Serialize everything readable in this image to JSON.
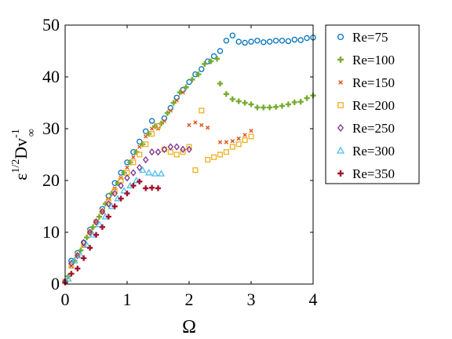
{
  "chart_data": {
    "type": "scatter",
    "title": "",
    "xlabel": "Ω",
    "ylabel": {
      "base": "ε",
      "base_superscript": "1/2",
      "main": "Dv",
      "main_superscript": "-1",
      "main_subscript": "∞"
    },
    "xlim": [
      0,
      4
    ],
    "ylim": [
      0,
      50
    ],
    "xticks": [
      "0",
      "1",
      "2",
      "3",
      "4"
    ],
    "yticks": [
      "0",
      "10",
      "20",
      "30",
      "40",
      "50"
    ],
    "grid": false,
    "legend_position": "outside-right-top",
    "series": [
      {
        "name": "Re=75",
        "marker": "circle",
        "color": "#0072BD",
        "x": [
          0.0,
          0.1,
          0.2,
          0.3,
          0.4,
          0.5,
          0.6,
          0.7,
          0.8,
          0.9,
          1.0,
          1.1,
          1.2,
          1.3,
          1.4,
          1.5,
          1.6,
          1.7,
          1.8,
          1.9,
          2.0,
          2.1,
          2.2,
          2.3,
          2.4,
          2.5,
          2.6,
          2.7,
          2.8,
          2.9,
          3.0,
          3.1,
          3.2,
          3.3,
          3.4,
          3.5,
          3.6,
          3.7,
          3.8,
          3.9,
          4.0
        ],
        "y": [
          0.5,
          4.5,
          6.0,
          8.0,
          10.5,
          12.0,
          14.5,
          17.0,
          19.5,
          21.5,
          23.5,
          25.5,
          27.5,
          29.5,
          31.5,
          30.5,
          32.0,
          34.0,
          36.0,
          37.5,
          39.0,
          40.5,
          41.5,
          43.0,
          44.0,
          45.0,
          47.0,
          48.0,
          46.8,
          46.6,
          46.8,
          47.0,
          46.7,
          46.8,
          47.0,
          47.0,
          46.9,
          47.2,
          47.1,
          47.5,
          47.6
        ]
      },
      {
        "name": "Re=100",
        "marker": "plus",
        "color": "#77AC30",
        "x": [
          0.05,
          0.15,
          0.25,
          0.35,
          0.45,
          0.55,
          0.65,
          0.75,
          0.85,
          0.95,
          1.05,
          1.15,
          1.25,
          1.35,
          1.45,
          1.55,
          1.65,
          1.75,
          1.85,
          1.95,
          2.05,
          2.15,
          2.25,
          2.35,
          2.45,
          2.5,
          2.6,
          2.7,
          2.8,
          2.9,
          3.0,
          3.1,
          3.2,
          3.3,
          3.4,
          3.5,
          3.6,
          3.7,
          3.8,
          3.9,
          4.0
        ],
        "y": [
          1.5,
          4.5,
          6.5,
          9.0,
          11.0,
          13.0,
          15.5,
          17.5,
          19.5,
          21.5,
          23.5,
          25.5,
          27.0,
          29.0,
          30.5,
          31.0,
          33.0,
          35.0,
          37.0,
          38.0,
          39.5,
          40.5,
          42.5,
          43.0,
          43.5,
          38.7,
          36.7,
          35.7,
          35.3,
          35.0,
          34.7,
          34.1,
          34.1,
          34.1,
          34.2,
          34.4,
          34.7,
          35.1,
          35.2,
          35.9,
          36.4
        ]
      },
      {
        "name": "Re=150",
        "marker": "x",
        "color": "#D95319",
        "x": [
          0.0,
          0.1,
          0.2,
          0.3,
          0.4,
          0.5,
          0.6,
          0.7,
          0.8,
          0.9,
          1.0,
          1.1,
          1.2,
          1.3,
          1.4,
          1.5,
          1.6,
          1.7,
          1.8,
          1.9,
          2.0,
          2.1,
          2.2,
          2.3,
          2.5,
          2.6,
          2.7,
          2.8,
          2.9,
          3.0
        ],
        "y": [
          0.5,
          3.5,
          5.5,
          7.5,
          10.0,
          12.0,
          14.0,
          16.5,
          18.5,
          20.5,
          22.5,
          24.5,
          26.5,
          28.5,
          30.0,
          30.0,
          31.5,
          33.5,
          35.5,
          37.0,
          30.7,
          31.2,
          30.7,
          30.2,
          27.4,
          27.4,
          27.6,
          28.1,
          28.8,
          29.6
        ]
      },
      {
        "name": "Re=200",
        "marker": "square",
        "color": "#EDB120",
        "x": [
          0.0,
          0.1,
          0.2,
          0.3,
          0.4,
          0.5,
          0.6,
          0.7,
          0.8,
          0.9,
          1.0,
          1.1,
          1.2,
          1.3,
          1.4,
          1.5,
          1.6,
          1.7,
          1.8,
          1.9,
          2.0,
          2.1,
          2.2,
          2.3,
          2.4,
          2.5,
          2.6,
          2.7,
          2.8,
          2.9,
          3.0
        ],
        "y": [
          0.5,
          3.5,
          5.5,
          7.5,
          10.0,
          12.0,
          14.0,
          16.0,
          18.0,
          20.0,
          21.5,
          23.5,
          25.0,
          27.0,
          29.0,
          30.5,
          26.0,
          25.5,
          25.0,
          25.5,
          26.5,
          22.0,
          33.5,
          24.0,
          24.5,
          25.0,
          25.5,
          26.5,
          27.0,
          27.8,
          28.5
        ]
      },
      {
        "name": "Re=250",
        "marker": "diamond",
        "color": "#7E2F8E",
        "x": [
          0.0,
          0.1,
          0.2,
          0.3,
          0.4,
          0.5,
          0.6,
          0.7,
          0.8,
          0.9,
          1.0,
          1.1,
          1.2,
          1.3,
          1.4,
          1.5,
          1.6,
          1.7,
          1.8,
          1.9,
          2.0
        ],
        "y": [
          0.5,
          4.0,
          5.5,
          8.0,
          10.0,
          12.0,
          14.0,
          15.5,
          17.5,
          19.0,
          20.5,
          21.5,
          22.5,
          24.0,
          25.5,
          25.5,
          26.0,
          26.5,
          26.5,
          26.0,
          26.0
        ]
      },
      {
        "name": "Re=300",
        "marker": "triangle",
        "color": "#4DBEEE",
        "x": [
          0.05,
          0.15,
          0.25,
          0.35,
          0.45,
          0.55,
          0.65,
          0.75,
          0.85,
          0.95,
          1.05,
          1.15,
          1.25,
          1.35,
          1.45,
          1.55
        ],
        "y": [
          1.0,
          4.5,
          5.5,
          7.5,
          9.5,
          11.5,
          13.0,
          15.0,
          16.5,
          18.0,
          19.0,
          20.0,
          22.0,
          21.5,
          21.3,
          21.3
        ]
      },
      {
        "name": "Re=350",
        "marker": "plus",
        "color": "#A2142F",
        "x": [
          0.0,
          0.1,
          0.2,
          0.3,
          0.4,
          0.5,
          0.6,
          0.7,
          0.8,
          0.9,
          1.0,
          1.1,
          1.2,
          1.3,
          1.4,
          1.5
        ],
        "y": [
          0.3,
          2.0,
          3.0,
          5.0,
          7.0,
          9.5,
          11.0,
          13.0,
          15.0,
          16.5,
          17.5,
          19.0,
          19.8,
          18.5,
          18.6,
          18.5
        ]
      }
    ]
  }
}
